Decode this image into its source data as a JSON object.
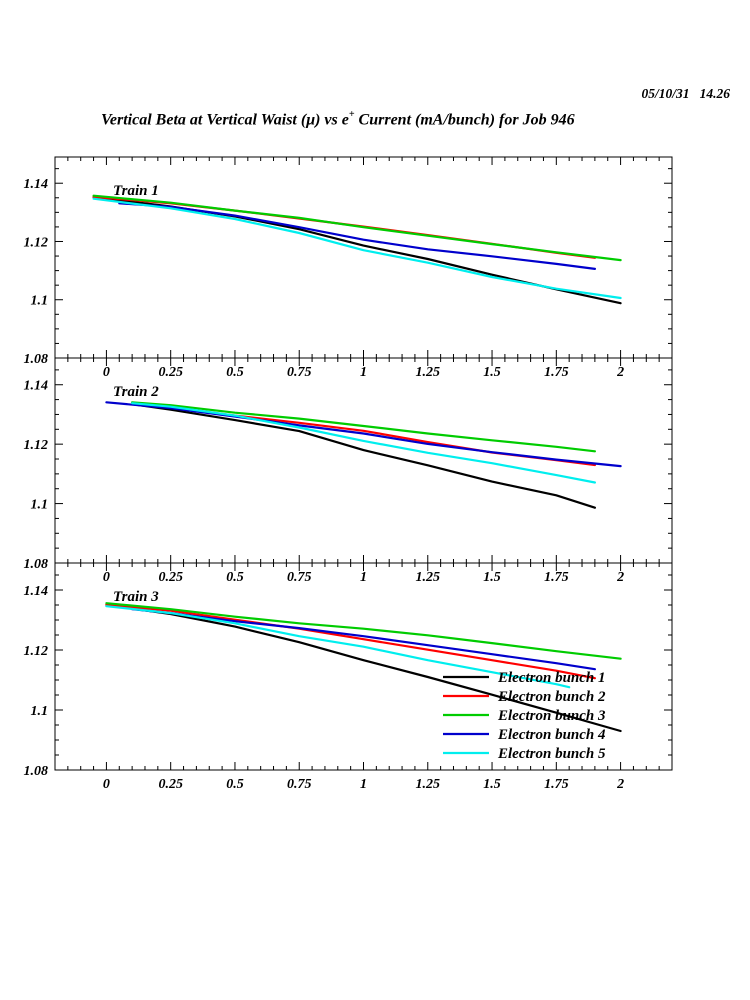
{
  "header": {
    "timestamp": "05/10/31   14.26",
    "title_main": "Vertical Beta at Vertical Waist (μ) vs e",
    "title_sup": "+",
    "title_tail": " Current (mA/bunch) for Job 946"
  },
  "legend": {
    "position": "inside-bottom-right-of-panel-3",
    "items": [
      {
        "label": "Electron bunch 1",
        "color": "#000000"
      },
      {
        "label": "Electron bunch 2",
        "color": "#ff0000"
      },
      {
        "label": "Electron bunch 3",
        "color": "#00cc00"
      },
      {
        "label": "Electron bunch 4",
        "color": "#0000cc"
      },
      {
        "label": "Electron bunch 5",
        "color": "#00eeee"
      }
    ]
  },
  "chart_data": [
    {
      "type": "line",
      "panel_label": "Train 1",
      "xlim": [
        -0.2,
        2.2
      ],
      "ylim": [
        1.08,
        1.149
      ],
      "xticks": [
        0,
        0.25,
        0.5,
        0.75,
        1,
        1.25,
        1.5,
        1.75,
        2
      ],
      "xtick_labels": [
        "0",
        "0.25",
        "0.5",
        "0.75",
        "1",
        "1.25",
        "1.5",
        "1.75",
        "2"
      ],
      "x_minor_step": 0.05,
      "yticks": [
        1.08,
        1.1,
        1.12,
        1.14
      ],
      "ytick_labels": [
        "1.08",
        "1.1",
        "1.12",
        "1.14"
      ],
      "y_minor_step": 0.005,
      "grid": false,
      "series": [
        {
          "name": "Electron bunch 1",
          "color": "#000000",
          "x": [
            -0.05,
            0.25,
            0.5,
            0.75,
            1,
            1.25,
            1.5,
            1.75,
            2
          ],
          "y": [
            1.1352,
            1.132,
            1.1286,
            1.1242,
            1.1186,
            1.114,
            1.1086,
            1.1036,
            1.0988
          ]
        },
        {
          "name": "Electron bunch 2",
          "color": "#ff0000",
          "x": [
            -0.05,
            0.25,
            0.5,
            0.75,
            1,
            1.25,
            1.5,
            1.75,
            1.9
          ],
          "y": [
            1.1353,
            1.1331,
            1.1306,
            1.1279,
            1.1251,
            1.1222,
            1.1192,
            1.1161,
            1.1144
          ]
        },
        {
          "name": "Electron bunch 3",
          "color": "#00cc00",
          "x": [
            -0.05,
            0.25,
            0.5,
            0.75,
            1,
            1.25,
            1.5,
            1.75,
            2
          ],
          "y": [
            1.1357,
            1.1333,
            1.1306,
            1.1281,
            1.1249,
            1.122,
            1.1191,
            1.1163,
            1.1136
          ]
        },
        {
          "name": "Electron bunch 4",
          "color": "#0000cc",
          "x": [
            0.05,
            0.25,
            0.5,
            0.75,
            1,
            1.25,
            1.5,
            1.75,
            1.9
          ],
          "y": [
            1.1331,
            1.1319,
            1.1289,
            1.1249,
            1.1206,
            1.1173,
            1.1149,
            1.1123,
            1.1106
          ]
        },
        {
          "name": "Electron bunch 5",
          "color": "#00eeee",
          "x": [
            -0.05,
            0.25,
            0.5,
            0.75,
            1,
            1.25,
            1.5,
            1.75,
            2
          ],
          "y": [
            1.1347,
            1.1314,
            1.1277,
            1.1229,
            1.117,
            1.1127,
            1.1078,
            1.1038,
            1.1006
          ]
        }
      ]
    },
    {
      "type": "line",
      "panel_label": "Train 2",
      "xlim": [
        -0.2,
        2.2
      ],
      "ylim": [
        1.08,
        1.149
      ],
      "xticks": [
        0,
        0.25,
        0.5,
        0.75,
        1,
        1.25,
        1.5,
        1.75,
        2
      ],
      "xtick_labels": [
        "0",
        "0.25",
        "0.5",
        "0.75",
        "1",
        "1.25",
        "1.5",
        "1.75",
        "2"
      ],
      "x_minor_step": 0.05,
      "yticks": [
        1.08,
        1.1,
        1.12,
        1.14
      ],
      "ytick_labels": [
        "1.08",
        "1.1",
        "1.12",
        "1.14"
      ],
      "y_minor_step": 0.005,
      "grid": false,
      "series": [
        {
          "name": "Electron bunch 1",
          "color": "#000000",
          "x": [
            0.1,
            0.25,
            0.5,
            0.75,
            1,
            1.25,
            1.5,
            1.75,
            1.9
          ],
          "y": [
            1.1335,
            1.1316,
            1.1281,
            1.1244,
            1.118,
            1.1129,
            1.1074,
            1.1028,
            1.0986
          ]
        },
        {
          "name": "Electron bunch 2",
          "color": "#ff0000",
          "x": [
            0.1,
            0.25,
            0.5,
            0.75,
            1,
            1.25,
            1.5,
            1.75,
            1.9
          ],
          "y": [
            1.1336,
            1.1323,
            1.1296,
            1.1272,
            1.1245,
            1.1207,
            1.1172,
            1.1146,
            1.113
          ]
        },
        {
          "name": "Electron bunch 3",
          "color": "#00cc00",
          "x": [
            0.1,
            0.25,
            0.5,
            0.75,
            1,
            1.25,
            1.5,
            1.75,
            1.9
          ],
          "y": [
            1.1341,
            1.1331,
            1.1306,
            1.1286,
            1.1261,
            1.1236,
            1.1213,
            1.1191,
            1.1176
          ]
        },
        {
          "name": "Electron bunch 4",
          "color": "#0000cc",
          "x": [
            0,
            0.25,
            0.5,
            0.75,
            1,
            1.25,
            1.5,
            1.75,
            2
          ],
          "y": [
            1.1341,
            1.1321,
            1.1293,
            1.1263,
            1.1236,
            1.1201,
            1.1173,
            1.1148,
            1.1126
          ]
        },
        {
          "name": "Electron bunch 5",
          "color": "#00eeee",
          "x": [
            0.1,
            0.25,
            0.5,
            0.75,
            1,
            1.25,
            1.5,
            1.75,
            1.9
          ],
          "y": [
            1.1338,
            1.1326,
            1.1296,
            1.1256,
            1.1211,
            1.1171,
            1.1136,
            1.1096,
            1.1071
          ]
        }
      ]
    },
    {
      "type": "line",
      "panel_label": "Train 3",
      "xlim": [
        -0.2,
        2.2
      ],
      "ylim": [
        1.08,
        1.149
      ],
      "xticks": [
        0,
        0.25,
        0.5,
        0.75,
        1,
        1.25,
        1.5,
        1.75,
        2
      ],
      "xtick_labels": [
        "0",
        "0.25",
        "0.5",
        "0.75",
        "1",
        "1.25",
        "1.5",
        "1.75",
        "2"
      ],
      "x_minor_step": 0.05,
      "yticks": [
        1.08,
        1.1,
        1.12,
        1.14
      ],
      "ytick_labels": [
        "1.08",
        "1.1",
        "1.12",
        "1.14"
      ],
      "y_minor_step": 0.005,
      "grid": false,
      "series": [
        {
          "name": "Electron bunch 1",
          "color": "#000000",
          "x": [
            0,
            0.25,
            0.5,
            0.75,
            1,
            1.25,
            1.5,
            1.75,
            2
          ],
          "y": [
            1.135,
            1.132,
            1.1278,
            1.1226,
            1.1166,
            1.111,
            1.1051,
            1.0991,
            1.093
          ]
        },
        {
          "name": "Electron bunch 2",
          "color": "#ff0000",
          "x": [
            0,
            0.25,
            0.5,
            0.75,
            1,
            1.25,
            1.5,
            1.75,
            1.9
          ],
          "y": [
            1.1351,
            1.1331,
            1.1301,
            1.1271,
            1.1236,
            1.1201,
            1.1166,
            1.1131,
            1.1106
          ]
        },
        {
          "name": "Electron bunch 3",
          "color": "#00cc00",
          "x": [
            0,
            0.25,
            0.5,
            0.75,
            1,
            1.25,
            1.5,
            1.75,
            2
          ],
          "y": [
            1.1356,
            1.1336,
            1.1311,
            1.1289,
            1.1271,
            1.1249,
            1.1223,
            1.1196,
            1.1171
          ]
        },
        {
          "name": "Electron bunch 4",
          "color": "#0000cc",
          "x": [
            0.1,
            0.25,
            0.5,
            0.75,
            1,
            1.25,
            1.5,
            1.75,
            1.9
          ],
          "y": [
            1.1336,
            1.1323,
            1.1296,
            1.1273,
            1.1246,
            1.1216,
            1.1186,
            1.1156,
            1.1136
          ]
        },
        {
          "name": "Electron bunch 5",
          "color": "#00eeee",
          "x": [
            0,
            0.25,
            0.5,
            0.75,
            1,
            1.25,
            1.5,
            1.75,
            1.8
          ],
          "y": [
            1.1346,
            1.1323,
            1.1289,
            1.1246,
            1.1211,
            1.1166,
            1.1126,
            1.1086,
            1.1076
          ]
        }
      ]
    }
  ]
}
